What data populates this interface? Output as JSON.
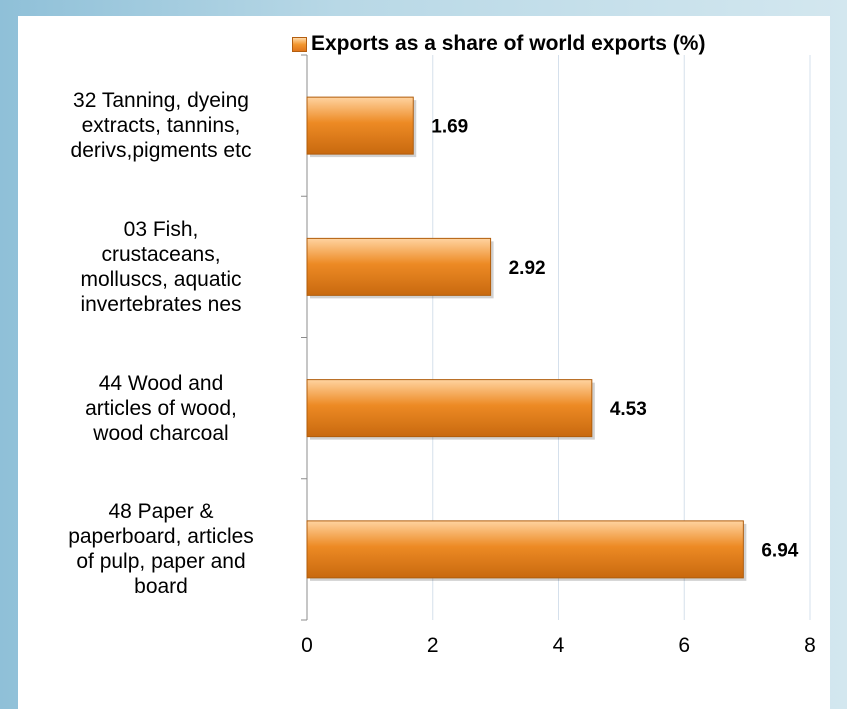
{
  "chart_data": {
    "type": "bar",
    "orientation": "horizontal",
    "title": "",
    "xlabel": "",
    "ylabel": "",
    "categories": [
      "32 Tanning, dyeing extracts, tannins, derivs,pigments etc",
      "03 Fish, crustaceans, molluscs, aquatic invertebrates nes",
      "44 Wood and articles of wood, wood charcoal",
      "48 Paper & paperboard, articles of pulp, paper and board"
    ],
    "category_lines": [
      [
        "32 Tanning, dyeing",
        "extracts, tannins,",
        "derivs,pigments etc"
      ],
      [
        "03 Fish,",
        "crustaceans,",
        "molluscs, aquatic",
        "invertebrates nes"
      ],
      [
        "44 Wood and",
        "articles of wood,",
        "wood charcoal"
      ],
      [
        "48 Paper &",
        "paperboard, articles",
        "of pulp, paper and",
        "board"
      ]
    ],
    "series": [
      {
        "name": "Exports as a share of world exports (%)",
        "values": [
          1.69,
          2.92,
          4.53,
          6.94
        ],
        "value_labels": [
          "1.69",
          "2.92",
          "4.53",
          "6.94"
        ]
      }
    ],
    "xlim": [
      0,
      8
    ],
    "xticks": [
      "0",
      "2",
      "4",
      "6",
      "8"
    ],
    "grid": true,
    "legend_position": "top",
    "colors": {
      "bar": "#ed8a24",
      "bar_light": "#ffd3a0",
      "bar_dark": "#c8690f",
      "grid": "#d5e0ec",
      "frame": "#9cc8dc"
    }
  }
}
